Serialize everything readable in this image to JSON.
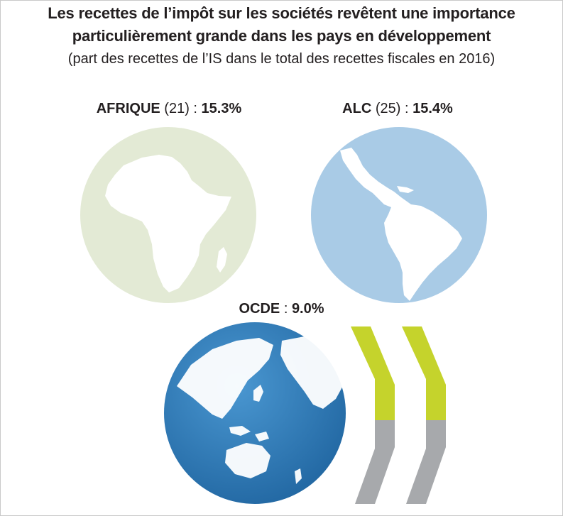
{
  "title_line1": "Les recettes de l’impôt sur les sociétés revêtent une importance",
  "title_line2": "particulièrement grande dans les pays en développement",
  "subtitle": "(part des recettes de l’IS dans le total des recettes fiscales en 2016)",
  "regions": {
    "africa": {
      "name": "AFRIQUE",
      "count": "(21)",
      "sep": " : ",
      "value": "15.3%",
      "color": "#e3ead5",
      "land_color": "#ffffff"
    },
    "alc": {
      "name": "ALC",
      "count": "(25)",
      "sep": " : ",
      "value": "15.4%",
      "color": "#a9cbe6",
      "land_color": "#ffffff"
    },
    "ocde": {
      "name": "OCDE",
      "sep": " : ",
      "value": "9.0%",
      "color": "#2f7fbf",
      "land_color": "#ffffff"
    }
  },
  "logo": {
    "name": "oecd-logo",
    "colors": {
      "green": "#c5d32c",
      "grey": "#a7a9ac"
    }
  },
  "icons": [
    "africa-globe-icon",
    "latin-america-globe-icon",
    "world-globe-icon",
    "oecd-chevron-logo"
  ]
}
